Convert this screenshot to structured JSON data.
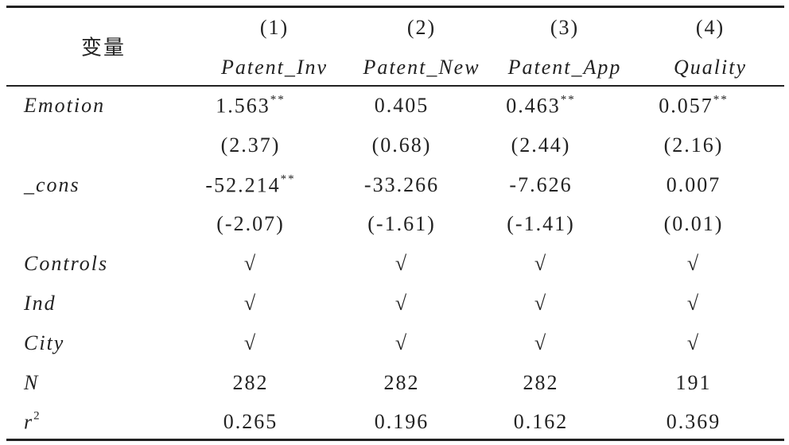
{
  "header": {
    "var_label": "变量",
    "columns": [
      {
        "num": "(1)",
        "name": "Patent_Inv"
      },
      {
        "num": "(2)",
        "name": "Patent_New"
      },
      {
        "num": "(3)",
        "name": "Patent_App"
      },
      {
        "num": "(4)",
        "name": "Quality"
      }
    ]
  },
  "rows": [
    {
      "label": "Emotion",
      "cells": [
        {
          "text": "1.563",
          "stars": "**"
        },
        {
          "text": "0.405"
        },
        {
          "text": "0.463",
          "stars": "**"
        },
        {
          "text": "0.057",
          "stars": "**"
        }
      ]
    },
    {
      "cells": [
        {
          "text": "(2.37)"
        },
        {
          "text": "(0.68)"
        },
        {
          "text": "(2.44)"
        },
        {
          "text": "(2.16)"
        }
      ]
    },
    {
      "label": "_cons",
      "cells": [
        {
          "text": "-52.214",
          "stars": "**"
        },
        {
          "text": "-33.266"
        },
        {
          "text": "-7.626"
        },
        {
          "text": "0.007"
        }
      ]
    },
    {
      "cells": [
        {
          "text": "(-2.07)"
        },
        {
          "text": "(-1.61)"
        },
        {
          "text": "(-1.41)"
        },
        {
          "text": "(0.01)"
        }
      ]
    },
    {
      "label": "Controls",
      "cells": [
        {
          "text": "√"
        },
        {
          "text": "√"
        },
        {
          "text": "√"
        },
        {
          "text": "√"
        }
      ]
    },
    {
      "label": "Ind",
      "cells": [
        {
          "text": "√"
        },
        {
          "text": "√"
        },
        {
          "text": "√"
        },
        {
          "text": "√"
        }
      ]
    },
    {
      "label": "City",
      "cells": [
        {
          "text": "√"
        },
        {
          "text": "√"
        },
        {
          "text": "√"
        },
        {
          "text": "√"
        }
      ]
    },
    {
      "label": "N",
      "cells": [
        {
          "text": "282"
        },
        {
          "text": "282"
        },
        {
          "text": "282"
        },
        {
          "text": "191"
        }
      ]
    },
    {
      "label": "r",
      "label_sup": "2",
      "cells": [
        {
          "text": "0.265"
        },
        {
          "text": "0.196"
        },
        {
          "text": "0.162"
        },
        {
          "text": "0.369"
        }
      ]
    }
  ]
}
